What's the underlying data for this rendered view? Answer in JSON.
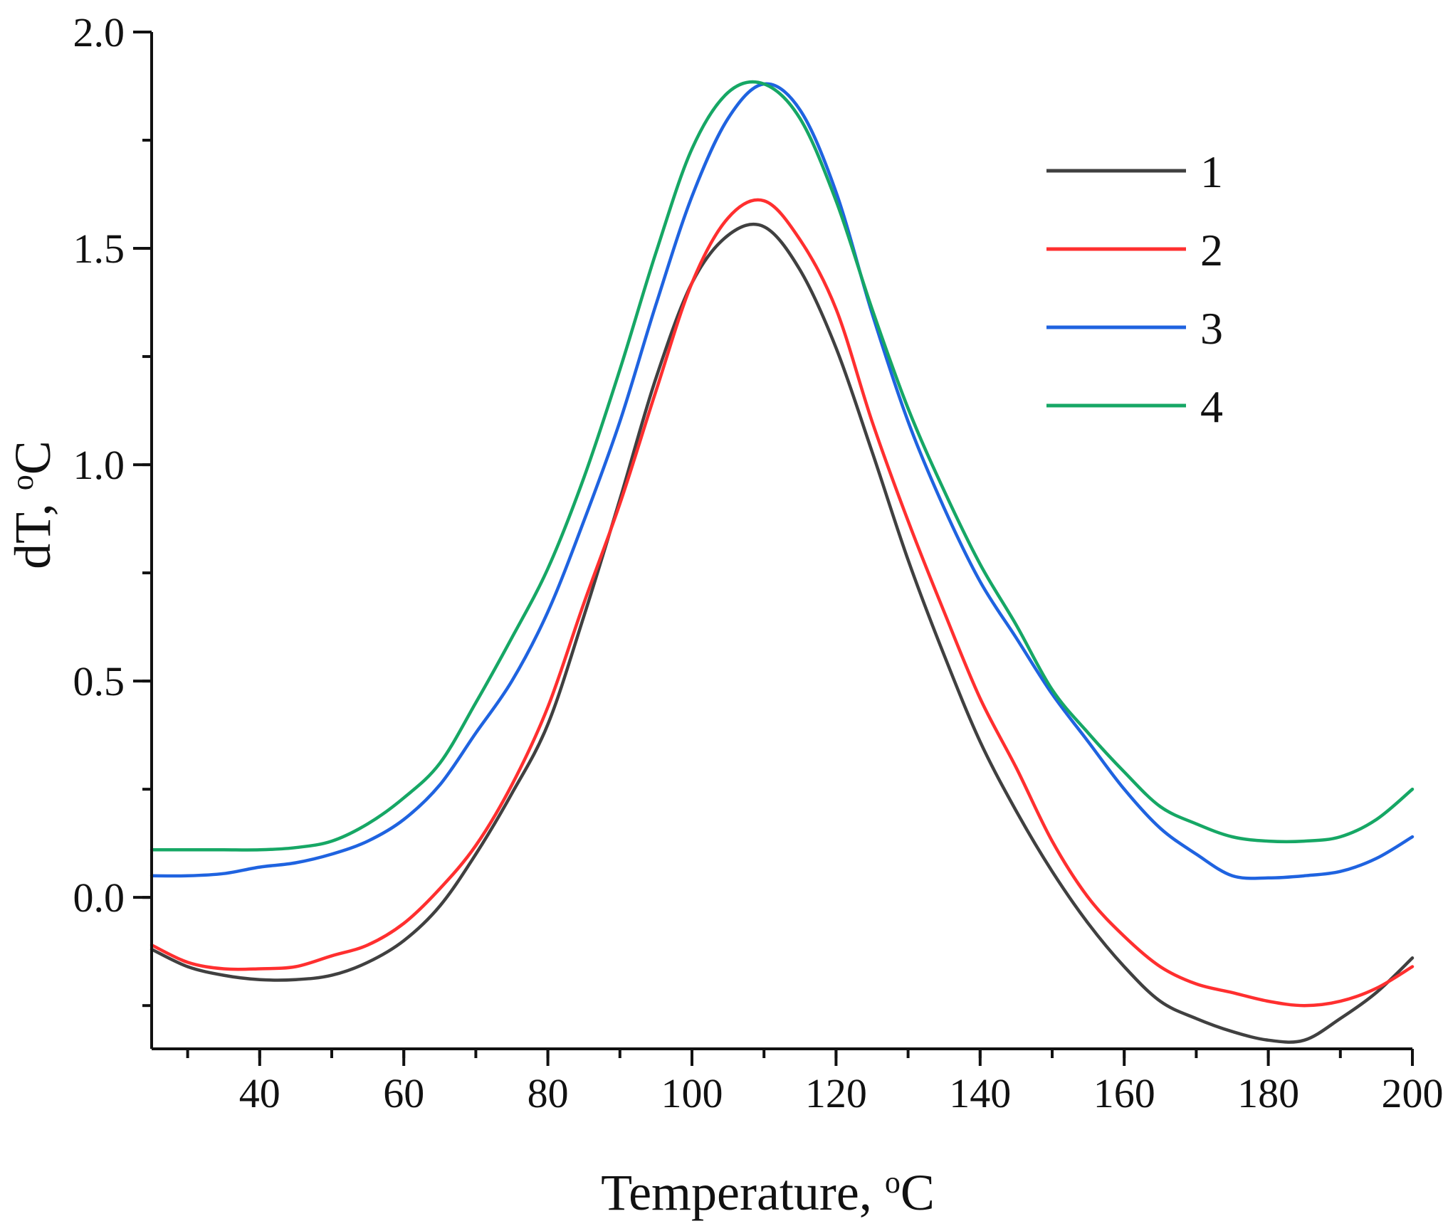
{
  "chart_data": {
    "type": "line",
    "title": "",
    "xlabel": "Temperature, ",
    "xlabel_sup": "o",
    "xlabel_unit": "C",
    "ylabel": "dT, ",
    "ylabel_sup": "o",
    "ylabel_unit": "C",
    "xlim": [
      25,
      200
    ],
    "ylim": [
      -0.35,
      2.0
    ],
    "x_major_ticks": [
      40,
      60,
      80,
      100,
      120,
      140,
      160,
      180,
      200
    ],
    "x_tick_labels": [
      "40",
      "60",
      "80",
      "100",
      "120",
      "140",
      "160",
      "180",
      "200"
    ],
    "y_major_ticks": [
      0.0,
      0.5,
      1.0,
      1.5,
      2.0
    ],
    "y_tick_labels": [
      "0.0",
      "0.5",
      "1.0",
      "1.5",
      "2.0"
    ],
    "x_minor_step": 10,
    "y_minor_step": 0.25,
    "legend_position": "top-right",
    "x": [
      25,
      30,
      35,
      40,
      45,
      50,
      55,
      60,
      65,
      70,
      75,
      80,
      85,
      90,
      95,
      100,
      105,
      110,
      115,
      120,
      125,
      130,
      135,
      140,
      145,
      150,
      155,
      160,
      165,
      170,
      175,
      180,
      185,
      190,
      195,
      200
    ],
    "series": [
      {
        "name": "1",
        "color": "#404040",
        "values": [
          -0.12,
          -0.16,
          -0.18,
          -0.19,
          -0.19,
          -0.18,
          -0.15,
          -0.1,
          -0.02,
          0.1,
          0.24,
          0.4,
          0.65,
          0.92,
          1.2,
          1.42,
          1.53,
          1.55,
          1.45,
          1.27,
          1.03,
          0.78,
          0.56,
          0.36,
          0.2,
          0.06,
          -0.06,
          -0.16,
          -0.24,
          -0.28,
          -0.31,
          -0.33,
          -0.33,
          -0.28,
          -0.22,
          -0.14
        ]
      },
      {
        "name": "2",
        "color": "#ff2f2f",
        "values": [
          -0.11,
          -0.15,
          -0.165,
          -0.165,
          -0.16,
          -0.135,
          -0.11,
          -0.06,
          0.02,
          0.12,
          0.26,
          0.44,
          0.68,
          0.91,
          1.17,
          1.42,
          1.57,
          1.61,
          1.52,
          1.36,
          1.1,
          0.87,
          0.66,
          0.46,
          0.3,
          0.13,
          0.0,
          -0.09,
          -0.16,
          -0.2,
          -0.22,
          -0.24,
          -0.25,
          -0.24,
          -0.21,
          -0.16
        ]
      },
      {
        "name": "3",
        "color": "#1f63e0",
        "values": [
          0.05,
          0.05,
          0.055,
          0.07,
          0.08,
          0.1,
          0.13,
          0.18,
          0.26,
          0.38,
          0.5,
          0.66,
          0.87,
          1.1,
          1.37,
          1.62,
          1.8,
          1.88,
          1.82,
          1.63,
          1.35,
          1.1,
          0.9,
          0.73,
          0.6,
          0.47,
          0.36,
          0.25,
          0.16,
          0.1,
          0.05,
          0.045,
          0.05,
          0.06,
          0.09,
          0.14
        ]
      },
      {
        "name": "4",
        "color": "#16a765",
        "values": [
          0.11,
          0.11,
          0.11,
          0.11,
          0.115,
          0.13,
          0.17,
          0.23,
          0.31,
          0.45,
          0.6,
          0.76,
          0.97,
          1.22,
          1.49,
          1.73,
          1.86,
          1.88,
          1.8,
          1.61,
          1.36,
          1.13,
          0.94,
          0.77,
          0.63,
          0.48,
          0.38,
          0.29,
          0.21,
          0.17,
          0.14,
          0.13,
          0.13,
          0.14,
          0.18,
          0.25
        ]
      }
    ]
  }
}
